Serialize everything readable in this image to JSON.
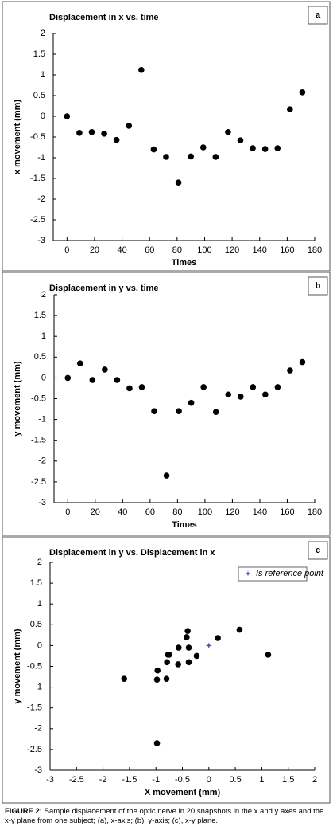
{
  "chart_data": [
    {
      "type": "scatter",
      "panel_label": "a",
      "title": "Displacement in x vs. time",
      "xlabel": "Times",
      "ylabel": "x movement (mm)",
      "xlim": [
        -10,
        180
      ],
      "xticks": [
        0,
        20,
        40,
        60,
        80,
        100,
        120,
        140,
        160,
        180
      ],
      "ylim": [
        -3,
        2
      ],
      "yticks": [
        -3,
        -2.5,
        -2,
        -1.5,
        -1,
        -0.5,
        0,
        0.5,
        1,
        1.5,
        2
      ],
      "series": [
        {
          "color": "#000000",
          "x": [
            0,
            9,
            18,
            27,
            36,
            45,
            54,
            63,
            72,
            81,
            90,
            99,
            108,
            117,
            126,
            135,
            144,
            153,
            162,
            171
          ],
          "values": [
            0,
            -0.4,
            -0.38,
            -0.42,
            -0.57,
            -0.23,
            1.12,
            -0.8,
            -0.98,
            -1.6,
            -0.97,
            -0.75,
            -0.98,
            -0.38,
            -0.58,
            -0.77,
            -0.79,
            -0.77,
            0.17,
            0.58
          ]
        }
      ]
    },
    {
      "type": "scatter",
      "panel_label": "b",
      "title": "Displacement in y vs. time",
      "xlabel": "Times",
      "ylabel": "y movement (mm)",
      "xlim": [
        -10,
        180
      ],
      "xticks": [
        0,
        20,
        40,
        60,
        80,
        100,
        120,
        140,
        160,
        180
      ],
      "ylim": [
        -3,
        2
      ],
      "yticks": [
        -3,
        -2.5,
        -2,
        -1.5,
        -1,
        -0.5,
        0,
        0.5,
        1,
        1.5,
        2
      ],
      "series": [
        {
          "color": "#000000",
          "x": [
            0,
            9,
            18,
            27,
            36,
            45,
            54,
            63,
            72,
            81,
            90,
            99,
            108,
            117,
            126,
            135,
            144,
            153,
            162,
            171
          ],
          "values": [
            0,
            0.35,
            -0.05,
            0.2,
            -0.05,
            -0.25,
            -0.22,
            -0.8,
            -2.35,
            -0.8,
            -0.6,
            -0.22,
            -0.82,
            -0.4,
            -0.45,
            -0.22,
            -0.4,
            -0.22,
            0.18,
            0.38
          ]
        }
      ]
    },
    {
      "type": "scatter",
      "panel_label": "c",
      "title": "Displacement in y vs. Displacement in x",
      "xlabel": "X movement (mm)",
      "ylabel": "y movement (mm)",
      "xlim": [
        -3,
        2
      ],
      "xticks": [
        -3,
        -2.5,
        -2,
        -1.5,
        -1,
        -0.5,
        0,
        0.5,
        1,
        1.5,
        2
      ],
      "ylim": [
        -3,
        2
      ],
      "yticks": [
        -3,
        -2.5,
        -2,
        -1.5,
        -1,
        -0.5,
        0,
        0.5,
        1,
        1.5,
        2
      ],
      "series": [
        {
          "color": "#000000",
          "x": [
            -0.4,
            -0.38,
            -0.42,
            -0.57,
            -0.23,
            1.12,
            -0.8,
            -0.98,
            -1.6,
            -0.97,
            -0.75,
            -0.98,
            -0.38,
            -0.58,
            -0.77,
            -0.79,
            -0.77,
            0.17,
            0.58
          ],
          "values": [
            0.35,
            -0.05,
            0.2,
            -0.05,
            -0.25,
            -0.22,
            -0.8,
            -2.35,
            -0.8,
            -0.6,
            -0.22,
            -0.82,
            -0.4,
            -0.45,
            -0.22,
            -0.4,
            -0.22,
            0.18,
            0.38
          ]
        },
        {
          "name": "Is reference point",
          "color": "#5555b0",
          "marker": "star",
          "x": [
            0
          ],
          "values": [
            0
          ]
        }
      ]
    }
  ],
  "caption": {
    "label": "FIGURE 2:",
    "text": "Sample displacement of the optic nerve in 20 snapshots in the x and y axes and the x-y plane from one subject; (a), x-axis; (b), y-axis; (c), x-y plane."
  }
}
